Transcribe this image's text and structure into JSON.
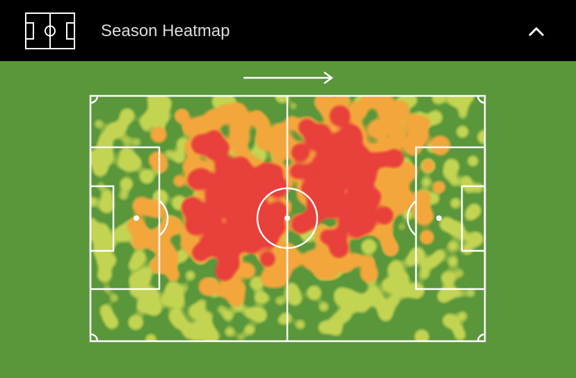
{
  "header": {
    "title": "Season Heatmap"
  }
}
